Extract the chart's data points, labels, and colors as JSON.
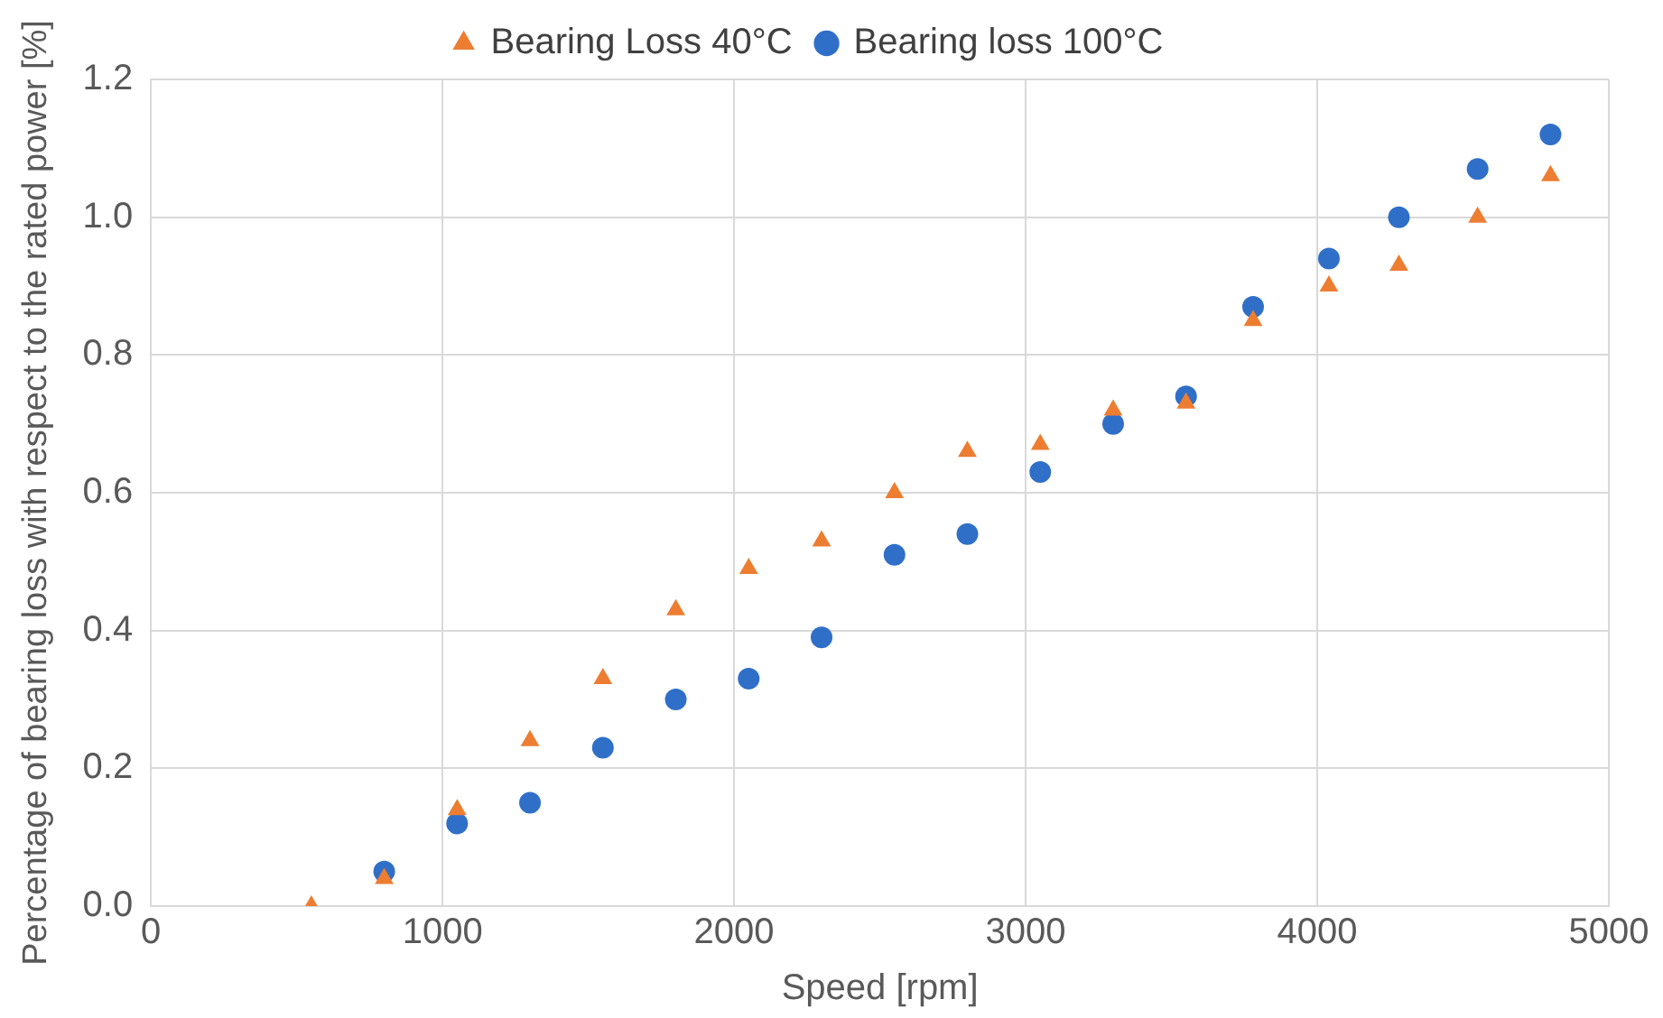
{
  "chart_data": {
    "type": "scatter",
    "xlabel": "Speed [rpm]",
    "ylabel": "Percentage of bearing loss with respect to the rated power [%]",
    "xlim": [
      0,
      5000
    ],
    "xticks": [
      0,
      1000,
      2000,
      3000,
      4000,
      5000
    ],
    "ylim": [
      0,
      1.2
    ],
    "yticks": [
      {
        "value": 0,
        "label": "0.0"
      },
      {
        "value": 0.2,
        "label": "0.2"
      },
      {
        "value": 0.4,
        "label": "0.4"
      },
      {
        "value": 0.6,
        "label": "0.6"
      },
      {
        "value": 0.8,
        "label": "0.8"
      },
      {
        "value": 1,
        "label": "1.0"
      },
      {
        "value": 1.2,
        "label": "1.2"
      }
    ],
    "grid": true,
    "legend": "top",
    "series": [
      {
        "name": "Bearing loss 100°C",
        "color": "#2f6fc8",
        "marker": "circle",
        "x": [
          800,
          1050,
          1300,
          1550,
          1800,
          2050,
          2300,
          2550,
          2800,
          3050,
          3300,
          3550,
          3780,
          4040,
          4280,
          4550,
          4800
        ],
        "values": [
          0.05,
          0.12,
          0.15,
          0.23,
          0.3,
          0.33,
          0.39,
          0.51,
          0.54,
          0.63,
          0.7,
          0.74,
          0.87,
          0.94,
          1.0,
          1.07,
          1.12
        ]
      },
      {
        "name": "Bearing Loss 40°C",
        "color": "#ed7d31",
        "marker": "triangle",
        "x": [
          550,
          800,
          1050,
          1300,
          1550,
          1800,
          2050,
          2300,
          2550,
          2800,
          3050,
          3300,
          3550,
          3780,
          4040,
          4280,
          4550,
          4800
        ],
        "values": [
          0.0,
          0.04,
          0.14,
          0.24,
          0.33,
          0.43,
          0.49,
          0.53,
          0.6,
          0.66,
          0.67,
          0.72,
          0.73,
          0.85,
          0.9,
          0.93,
          1.0,
          1.06
        ]
      }
    ]
  }
}
